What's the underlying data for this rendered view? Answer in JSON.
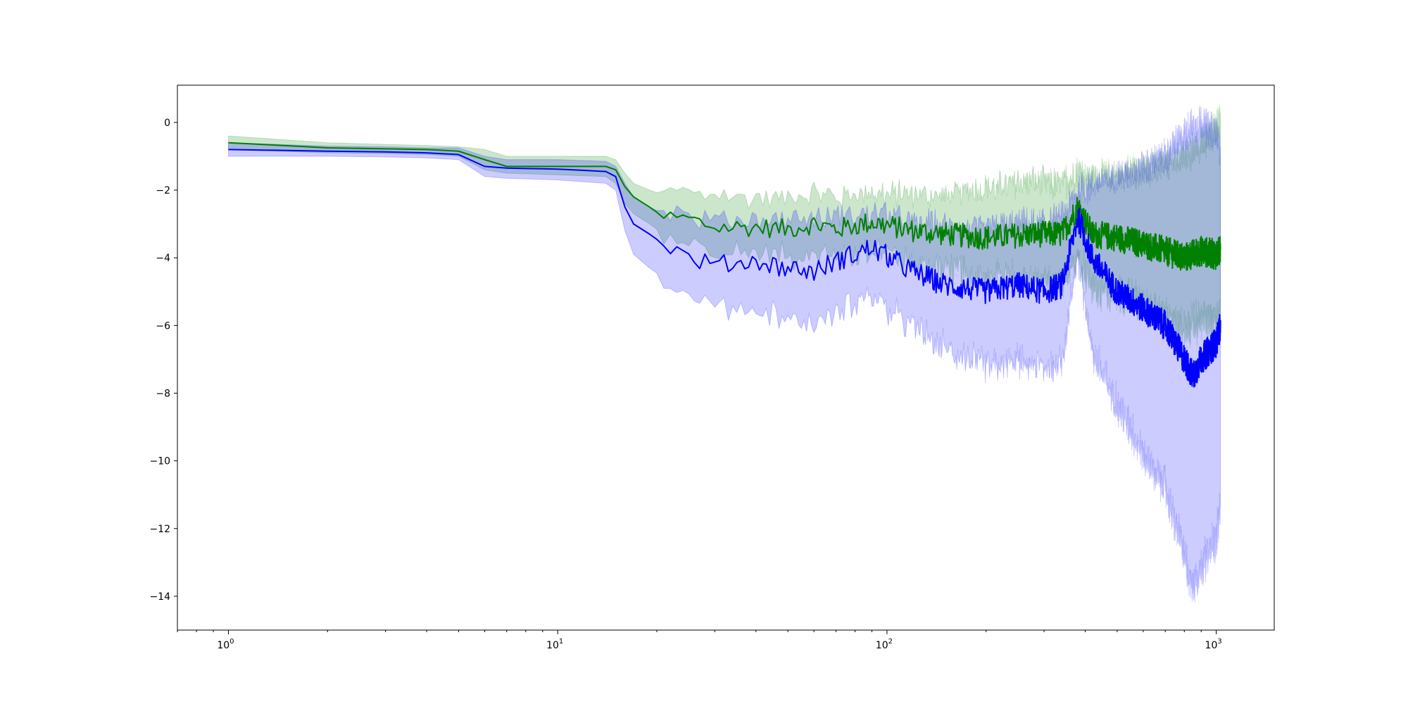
{
  "chart_data": {
    "type": "line",
    "title": "",
    "xlabel": "",
    "ylabel": "",
    "x_scale": "log",
    "xlim": [
      0.7,
      1500
    ],
    "ylim": [
      -15,
      1.1
    ],
    "grid": false,
    "legend": "none",
    "x_tick_labels": [
      {
        "value": 1,
        "base": "10",
        "exp": "0"
      },
      {
        "value": 10,
        "base": "10",
        "exp": "1"
      },
      {
        "value": 100,
        "base": "10",
        "exp": "2"
      },
      {
        "value": 1000,
        "base": "10",
        "exp": "3"
      }
    ],
    "y_tick_labels": [
      {
        "value": 0,
        "label": "0"
      },
      {
        "value": -2,
        "label": "−2"
      },
      {
        "value": -4,
        "label": "−4"
      },
      {
        "value": -6,
        "label": "−6"
      },
      {
        "value": -8,
        "label": "−8"
      },
      {
        "value": -10,
        "label": "−10"
      },
      {
        "value": -12,
        "label": "−12"
      },
      {
        "value": -14,
        "label": "−14"
      }
    ],
    "series": [
      {
        "color": "#008000",
        "band_color": "#008000",
        "points": [
          [
            1,
            -0.6,
            -0.4,
            -0.8
          ],
          [
            2,
            -0.75,
            -0.6,
            -0.9
          ],
          [
            3,
            -0.78,
            -0.65,
            -0.92
          ],
          [
            4,
            -0.8,
            -0.68,
            -0.95
          ],
          [
            5,
            -0.85,
            -0.72,
            -1.0
          ],
          [
            6,
            -1.1,
            -0.8,
            -1.4
          ],
          [
            7,
            -1.3,
            -1.0,
            -1.5
          ],
          [
            10,
            -1.3,
            -1.0,
            -1.55
          ],
          [
            14,
            -1.3,
            -1.0,
            -1.6
          ],
          [
            15,
            -1.4,
            -1.1,
            -1.8
          ],
          [
            16,
            -1.9,
            -1.5,
            -2.4
          ],
          [
            17,
            -2.2,
            -1.8,
            -2.7
          ],
          [
            19,
            -2.5,
            -2.0,
            -3.0
          ],
          [
            21,
            -2.8,
            -2.15,
            -3.3
          ],
          [
            25,
            -2.85,
            -2.2,
            -3.4
          ],
          [
            30,
            -3.1,
            -2.3,
            -3.6
          ],
          [
            40,
            -3.1,
            -2.3,
            -3.7
          ],
          [
            50,
            -3.15,
            -2.3,
            -3.8
          ],
          [
            60,
            -3.0,
            -2.2,
            -3.6
          ],
          [
            70,
            -3.15,
            -2.3,
            -3.8
          ],
          [
            90,
            -2.95,
            -2.2,
            -3.5
          ],
          [
            120,
            -3.2,
            -2.3,
            -3.9
          ],
          [
            150,
            -3.3,
            -2.3,
            -4.1
          ],
          [
            200,
            -3.4,
            -2.1,
            -4.3
          ],
          [
            280,
            -3.3,
            -1.9,
            -4.4
          ],
          [
            340,
            -3.3,
            -2.0,
            -4.5
          ],
          [
            380,
            -2.5,
            -1.6,
            -3.6
          ],
          [
            420,
            -3.3,
            -1.8,
            -4.6
          ],
          [
            500,
            -3.4,
            -1.7,
            -4.8
          ],
          [
            600,
            -3.6,
            -1.6,
            -5.0
          ],
          [
            700,
            -3.8,
            -1.4,
            -5.5
          ],
          [
            800,
            -4.0,
            -1.2,
            -5.8
          ],
          [
            900,
            -3.8,
            -0.8,
            -5.5
          ],
          [
            1000,
            -3.9,
            -0.3,
            -5.6
          ],
          [
            1030,
            -3.8,
            -0.2,
            -5.4
          ]
        ]
      },
      {
        "color": "#0000ff",
        "band_color": "#0000ff",
        "points": [
          [
            1,
            -0.8,
            -0.6,
            -1.0
          ],
          [
            2,
            -0.85,
            -0.7,
            -1.0
          ],
          [
            3,
            -0.87,
            -0.72,
            -1.02
          ],
          [
            4,
            -0.9,
            -0.75,
            -1.05
          ],
          [
            5,
            -0.95,
            -0.75,
            -1.1
          ],
          [
            6,
            -1.3,
            -1.0,
            -1.6
          ],
          [
            7,
            -1.35,
            -1.1,
            -1.65
          ],
          [
            10,
            -1.38,
            -1.1,
            -1.7
          ],
          [
            14,
            -1.45,
            -1.15,
            -1.8
          ],
          [
            15,
            -1.6,
            -1.3,
            -2.0
          ],
          [
            16,
            -2.5,
            -1.8,
            -3.2
          ],
          [
            17,
            -3.0,
            -2.2,
            -3.9
          ],
          [
            19,
            -3.3,
            -2.5,
            -4.3
          ],
          [
            21,
            -3.6,
            -2.7,
            -4.6
          ],
          [
            25,
            -4.0,
            -2.9,
            -5.0
          ],
          [
            30,
            -4.2,
            -3.0,
            -5.2
          ],
          [
            40,
            -4.1,
            -3.0,
            -5.3
          ],
          [
            50,
            -4.3,
            -3.0,
            -5.5
          ],
          [
            60,
            -4.4,
            -3.0,
            -5.7
          ],
          [
            70,
            -4.1,
            -2.9,
            -5.4
          ],
          [
            90,
            -3.7,
            -2.8,
            -4.9
          ],
          [
            120,
            -4.4,
            -3.1,
            -5.8
          ],
          [
            150,
            -4.8,
            -3.2,
            -6.4
          ],
          [
            200,
            -5.0,
            -3.3,
            -7.0
          ],
          [
            250,
            -4.8,
            -3.1,
            -6.8
          ],
          [
            300,
            -5.0,
            -3.2,
            -7.0
          ],
          [
            340,
            -4.8,
            -3.0,
            -6.8
          ],
          [
            380,
            -2.8,
            -2.2,
            -3.6
          ],
          [
            420,
            -4.0,
            -2.0,
            -6.5
          ],
          [
            500,
            -5.0,
            -1.8,
            -8.0
          ],
          [
            600,
            -5.5,
            -1.5,
            -9.5
          ],
          [
            700,
            -6.0,
            -1.2,
            -10.5
          ],
          [
            800,
            -7.0,
            -0.5,
            -12.5
          ],
          [
            850,
            -7.5,
            -0.3,
            -13.5
          ],
          [
            900,
            -7.0,
            -0.2,
            -12.8
          ],
          [
            1000,
            -6.5,
            -0.5,
            -12.0
          ],
          [
            1030,
            -6.0,
            -1.0,
            -11.0
          ]
        ]
      }
    ]
  }
}
